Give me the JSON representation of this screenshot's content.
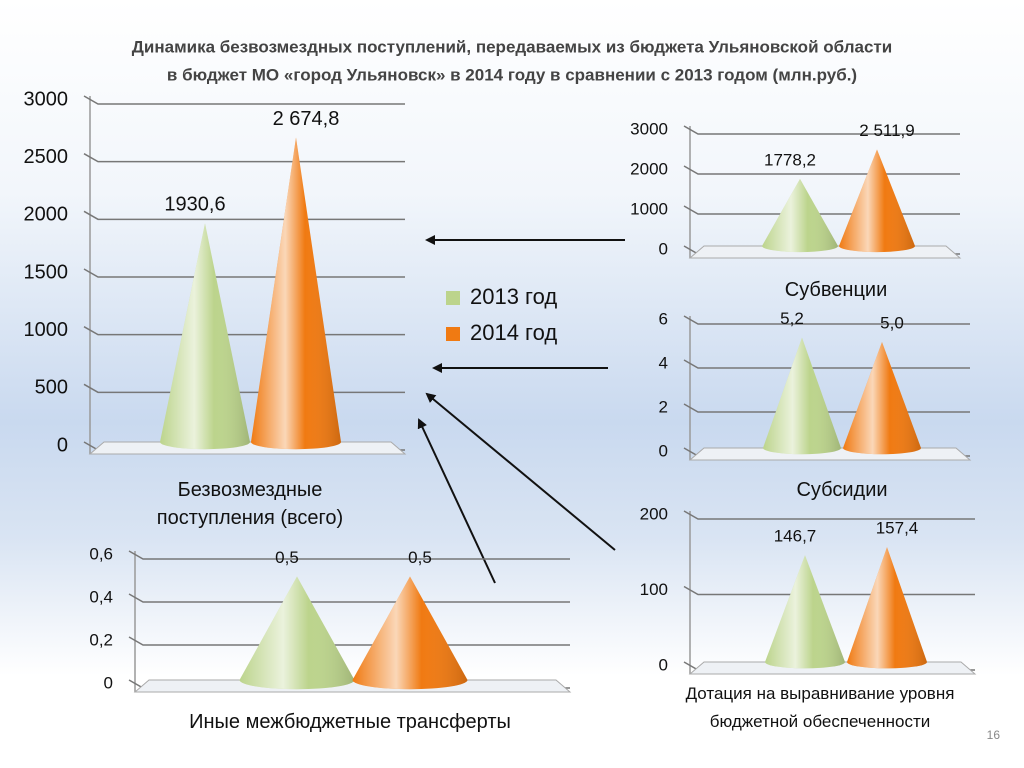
{
  "title": [
    "Динамика безвозмездных поступлений, передаваемых из бюджета Ульяновской области",
    "в бюджет МО «город Ульяновск» в 2014 году в сравнении с 2013 годом (млн.руб.)"
  ],
  "legend": [
    {
      "name": "2013 год",
      "color": "#bcd48c"
    },
    {
      "name": "2014 год",
      "color": "#f07a12"
    }
  ],
  "page_number": "16",
  "chart_data": [
    {
      "type": "cone",
      "title": "Безвозмездные поступления (всего)",
      "values": [
        1930.6,
        2674.8
      ],
      "value_labels": [
        "1930,6",
        "2 674,8"
      ],
      "ylim": [
        0,
        3000
      ],
      "yticks": [
        0,
        500,
        1000,
        1500,
        2000,
        2500,
        3000
      ],
      "grid": true
    },
    {
      "type": "cone",
      "title": "Субвенции",
      "values": [
        1778.2,
        2511.9
      ],
      "value_labels": [
        "1778,2",
        "2 511,9"
      ],
      "ylim": [
        0,
        3000
      ],
      "yticks": [
        0,
        1000,
        2000,
        3000
      ],
      "grid": true
    },
    {
      "type": "cone",
      "title": "Субсидии",
      "values": [
        5.2,
        5.0
      ],
      "value_labels": [
        "5,2",
        "5,0"
      ],
      "ylim": [
        0,
        6
      ],
      "yticks": [
        0,
        2,
        4,
        6
      ],
      "grid": true
    },
    {
      "type": "cone",
      "title": "Дотация на выравнивание уровня бюджетной обеспеченности",
      "values": [
        146.7,
        157.4
      ],
      "value_labels": [
        "146,7",
        "157,4"
      ],
      "ylim": [
        0,
        200
      ],
      "yticks": [
        0,
        100,
        200
      ],
      "grid": true
    },
    {
      "type": "cone",
      "title": "Иные межбюджетные трансферты",
      "values": [
        0.5,
        0.5
      ],
      "value_labels": [
        "0,5",
        "0,5"
      ],
      "ylim": [
        0,
        0.6
      ],
      "yticks": [
        0,
        {
          "value": 0.2,
          "label": "0,2"
        },
        {
          "value": 0.4,
          "label": "0,4"
        },
        {
          "value": 0.6,
          "label": "0,6"
        }
      ],
      "grid": true
    }
  ]
}
